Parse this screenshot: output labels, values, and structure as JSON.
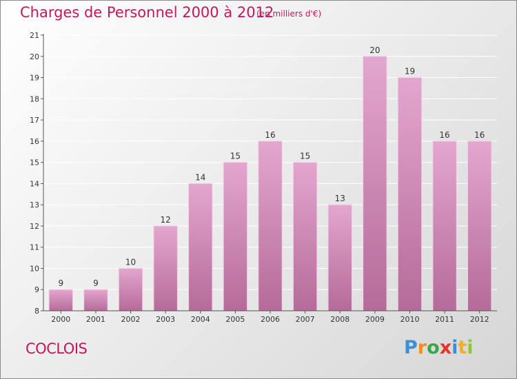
{
  "header": {
    "title": "Charges de Personnel 2000 à 2012",
    "subtitle": "(en milliers d'€)"
  },
  "footer": {
    "place": "COCLOIS",
    "logo": {
      "letters": [
        "P",
        "r",
        "o",
        "x",
        "i",
        "t",
        "i"
      ],
      "colors": [
        "#3a8fd6",
        "#f28c1e",
        "#3aa64a",
        "#e2342a",
        "#3a8fd6",
        "#f2b01e",
        "#8cc63f"
      ]
    }
  },
  "colors": {
    "bar_top": "#e3a6cf",
    "bar_bottom": "#b56b99",
    "bar_edge": "#f1d0e6",
    "axis": "#555555",
    "text": "#333333",
    "grid": "#ffffff"
  },
  "chart_data": {
    "type": "bar",
    "title": "Charges de Personnel 2000 à 2012",
    "subtitle": "(en milliers d'€)",
    "categories": [
      "2000",
      "2001",
      "2002",
      "2003",
      "2004",
      "2005",
      "2006",
      "2007",
      "2008",
      "2009",
      "2010",
      "2011",
      "2012"
    ],
    "values": [
      9,
      9,
      10,
      12,
      14,
      15,
      16,
      15,
      13,
      20,
      19,
      16,
      16
    ],
    "ylim": [
      8,
      21
    ],
    "yticks": [
      8,
      9,
      10,
      11,
      12,
      13,
      14,
      15,
      16,
      17,
      18,
      19,
      20,
      21
    ],
    "grid": true,
    "data_labels": true
  }
}
